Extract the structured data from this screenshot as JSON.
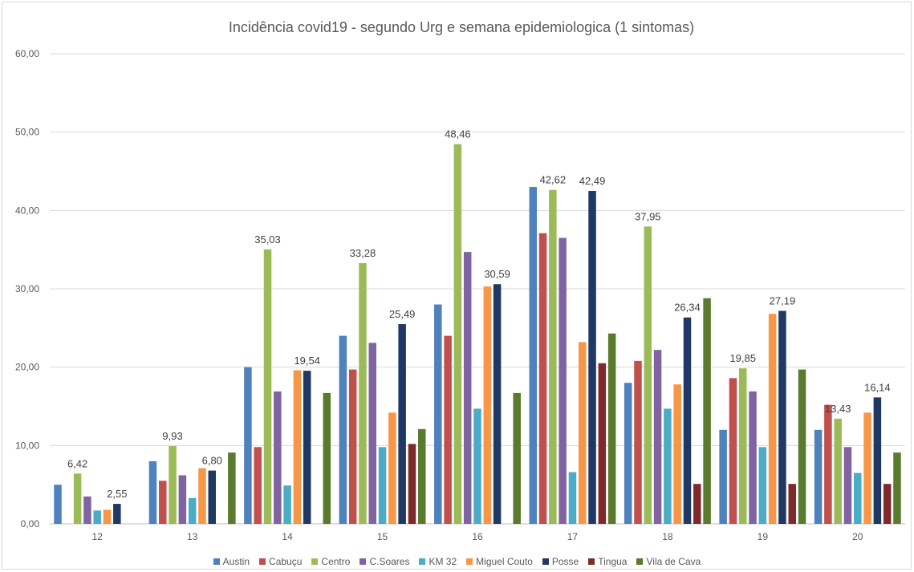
{
  "chart_data": {
    "type": "bar",
    "title": "Incidência covid19 - segundo Urg e semana epidemiologica (1 sintomas)",
    "xlabel": "",
    "ylabel": "",
    "ylim": [
      0,
      60
    ],
    "yticks": [
      "0,00",
      "10,00",
      "20,00",
      "30,00",
      "40,00",
      "50,00",
      "60,00"
    ],
    "grid": true,
    "legend": "bottom",
    "categories": [
      "12",
      "13",
      "14",
      "15",
      "16",
      "17",
      "18",
      "19",
      "20"
    ],
    "series": [
      {
        "name": "Austin",
        "color": "#4f81bd",
        "values": [
          5.0,
          8.0,
          20.0,
          24.0,
          28.0,
          43.0,
          18.0,
          12.0,
          12.0
        ]
      },
      {
        "name": "Cabuçu",
        "color": "#c0504d",
        "values": [
          null,
          5.5,
          9.8,
          19.7,
          24.0,
          37.1,
          20.8,
          18.6,
          15.2
        ]
      },
      {
        "name": "Centro",
        "color": "#9bbb59",
        "values": [
          6.42,
          9.93,
          35.03,
          33.28,
          48.46,
          42.62,
          37.95,
          19.85,
          13.43
        ]
      },
      {
        "name": "C.Soares",
        "color": "#8064a2",
        "values": [
          3.5,
          6.2,
          16.9,
          23.1,
          34.7,
          36.5,
          22.2,
          16.9,
          9.8
        ]
      },
      {
        "name": "KM 32",
        "color": "#4bacc6",
        "values": [
          1.7,
          3.3,
          4.9,
          9.8,
          14.7,
          6.6,
          14.7,
          9.8,
          6.5
        ]
      },
      {
        "name": "Miguel Couto",
        "color": "#f79646",
        "values": [
          1.8,
          7.1,
          19.6,
          14.2,
          30.3,
          23.2,
          17.8,
          26.8,
          14.2
        ]
      },
      {
        "name": "Posse",
        "color": "#1f3864",
        "values": [
          2.55,
          6.8,
          19.54,
          25.49,
          30.59,
          42.49,
          26.34,
          27.19,
          16.14
        ]
      },
      {
        "name": "Tingua",
        "color": "#7f2a2a",
        "values": [
          null,
          null,
          null,
          10.2,
          null,
          20.5,
          5.1,
          5.1,
          5.1
        ]
      },
      {
        "name": "Vila de Cava",
        "color": "#5a7a2e",
        "values": [
          null,
          9.1,
          16.7,
          12.1,
          16.7,
          24.3,
          28.8,
          19.7,
          9.1
        ]
      }
    ],
    "data_labels": [
      {
        "category": "12",
        "series": "Centro",
        "text": "6,42"
      },
      {
        "category": "12",
        "series": "Posse",
        "text": "2,55"
      },
      {
        "category": "13",
        "series": "Centro",
        "text": "9,93"
      },
      {
        "category": "13",
        "series": "Posse",
        "text": "6,80"
      },
      {
        "category": "14",
        "series": "Centro",
        "text": "35,03"
      },
      {
        "category": "14",
        "series": "Posse",
        "text": "19,54"
      },
      {
        "category": "15",
        "series": "Centro",
        "text": "33,28"
      },
      {
        "category": "15",
        "series": "Posse",
        "text": "25,49"
      },
      {
        "category": "16",
        "series": "Centro",
        "text": "48,46"
      },
      {
        "category": "16",
        "series": "Posse",
        "text": "30,59"
      },
      {
        "category": "17",
        "series": "Centro",
        "text": "42,62"
      },
      {
        "category": "17",
        "series": "Posse",
        "text": "42,49"
      },
      {
        "category": "18",
        "series": "Centro",
        "text": "37,95"
      },
      {
        "category": "18",
        "series": "Posse",
        "text": "26,34"
      },
      {
        "category": "19",
        "series": "Centro",
        "text": "19,85"
      },
      {
        "category": "19",
        "series": "Posse",
        "text": "27,19"
      },
      {
        "category": "20",
        "series": "Centro",
        "text": "13,43"
      },
      {
        "category": "20",
        "series": "Posse",
        "text": "16,14"
      }
    ]
  }
}
